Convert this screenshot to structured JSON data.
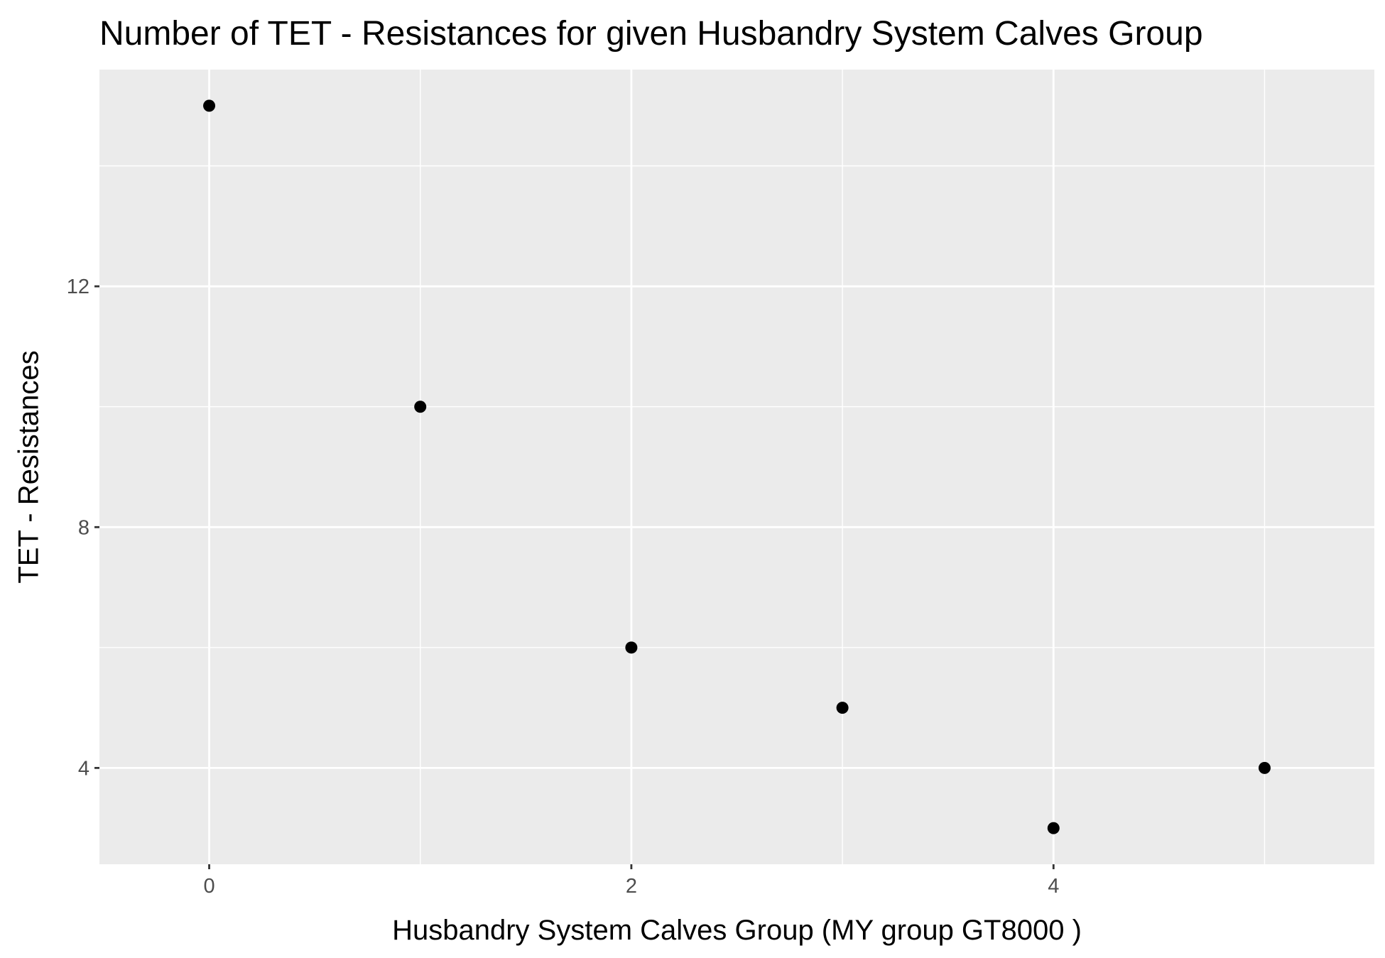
{
  "chart_data": {
    "type": "scatter",
    "title": "Number of TET - Resistances for given Husbandry System Calves Group",
    "xlabel": "Husbandry System Calves Group     (MY group GT8000 )",
    "ylabel": "TET - Resistances",
    "x": [
      0,
      1,
      2,
      3,
      4,
      5
    ],
    "y": [
      15,
      10,
      6,
      5,
      3,
      4
    ],
    "xlim": [
      -0.52,
      5.52
    ],
    "ylim": [
      2.4,
      15.6
    ],
    "x_ticks": [
      0,
      2,
      4
    ],
    "x_tick_labels": [
      "0",
      "2",
      "4"
    ],
    "y_ticks": [
      4,
      8,
      12
    ],
    "y_tick_labels": [
      "4",
      "8",
      "12"
    ],
    "grid": true,
    "legend": "none",
    "colors": {
      "panel_background": "#ebebeb",
      "grid_major": "#ffffff",
      "grid_minor": "#ffffff",
      "point": "#000000",
      "tick_mark": "#333333",
      "tick_label": "#4d4d4d"
    }
  }
}
